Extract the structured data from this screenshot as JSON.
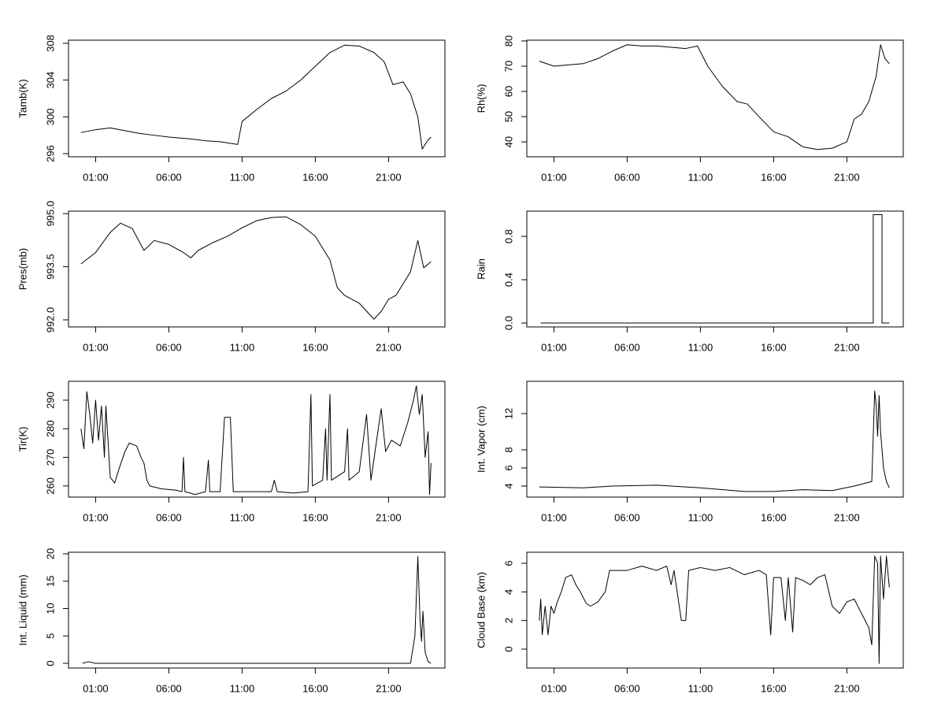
{
  "chart_data": [
    {
      "type": "line",
      "ylabel": "Tamb(K)",
      "color": "#000000",
      "x": [
        0.0,
        1,
        2,
        3,
        4,
        5,
        6,
        7.5,
        8.5,
        9.5,
        10.7,
        11,
        12,
        13,
        14,
        15,
        16,
        17,
        18,
        19,
        20,
        20.7,
        21.3,
        22,
        22.5,
        23,
        23.3,
        23.7,
        23.9
      ],
      "values": [
        298.3,
        298.6,
        298.8,
        298.5,
        298.2,
        298.0,
        297.8,
        297.6,
        297.4,
        297.3,
        297.0,
        299.5,
        300.8,
        302.0,
        302.8,
        304.0,
        305.5,
        307.0,
        307.8,
        307.7,
        307.0,
        306.0,
        303.5,
        303.8,
        302.5,
        300.0,
        296.5,
        297.5,
        297.8
      ],
      "xlim": [
        -0.85,
        24.85
      ],
      "ylim": [
        295.66,
        308.34
      ],
      "xticks": [
        {
          "value": 1,
          "label": "01:00"
        },
        {
          "value": 6,
          "label": "06:00"
        },
        {
          "value": 11,
          "label": "11:00"
        },
        {
          "value": 16,
          "label": "16:00"
        },
        {
          "value": 21,
          "label": "21:00"
        }
      ],
      "yticks": [
        296,
        300,
        304,
        308
      ]
    },
    {
      "type": "line",
      "ylabel": "Rh(%)",
      "color": "#000000",
      "x": [
        0.0,
        1,
        2,
        3,
        4,
        5,
        6,
        7,
        8,
        9,
        10,
        10.8,
        11.5,
        12.5,
        13.5,
        14.2,
        15,
        16,
        17,
        18,
        19,
        20,
        21,
        21.5,
        22,
        22.5,
        23,
        23.3,
        23.6,
        23.9
      ],
      "values": [
        72,
        70,
        70.5,
        71,
        73,
        76,
        78.5,
        78,
        78,
        77.5,
        77,
        78,
        70,
        62,
        56,
        55,
        50,
        44,
        42,
        38,
        37,
        37.5,
        40,
        49,
        51,
        56,
        66,
        78.5,
        73,
        71
      ],
      "xlim": [
        -0.85,
        24.85
      ],
      "ylim": [
        34.1,
        80.3
      ],
      "xticks": [
        {
          "value": 1,
          "label": "01:00"
        },
        {
          "value": 6,
          "label": "06:00"
        },
        {
          "value": 11,
          "label": "11:00"
        },
        {
          "value": 16,
          "label": "16:00"
        },
        {
          "value": 21,
          "label": "21:00"
        }
      ],
      "yticks": [
        40,
        50,
        60,
        70,
        80
      ]
    },
    {
      "type": "line",
      "ylabel": "Pres(mb)",
      "color": "#000000",
      "x": [
        0.0,
        1,
        2,
        2.7,
        3.5,
        4.3,
        5,
        6,
        7,
        7.5,
        8,
        9,
        10,
        11,
        12,
        13,
        14,
        15,
        16,
        17,
        17.5,
        18,
        19,
        20,
        20.5,
        21,
        21.5,
        22,
        22.5,
        23,
        23.4,
        23.9
      ],
      "values": [
        993.58,
        993.9,
        994.47,
        994.73,
        994.58,
        993.96,
        994.24,
        994.13,
        993.9,
        993.75,
        993.96,
        994.18,
        994.36,
        994.6,
        994.8,
        994.89,
        994.91,
        994.69,
        994.36,
        993.69,
        992.91,
        992.69,
        992.47,
        992.02,
        992.24,
        992.58,
        992.69,
        993.02,
        993.36,
        994.24,
        993.47,
        993.64
      ],
      "xlim": [
        -0.85,
        24.85
      ],
      "ylim": [
        991.8,
        995.07
      ],
      "xticks": [
        {
          "value": 1,
          "label": "01:00"
        },
        {
          "value": 6,
          "label": "06:00"
        },
        {
          "value": 11,
          "label": "11:00"
        },
        {
          "value": 16,
          "label": "16:00"
        },
        {
          "value": 21,
          "label": "21:00"
        }
      ],
      "yticks": [
        {
          "value": 992,
          "label": "992.0"
        },
        {
          "value": 993.5,
          "label": "993.5"
        },
        {
          "value": 995,
          "label": "995.0"
        }
      ]
    },
    {
      "type": "line",
      "ylabel": "Rain",
      "color": "#000000",
      "x": [
        0.1,
        22.8,
        22.8,
        23.4,
        23.4,
        23.9
      ],
      "values": [
        0,
        0,
        1,
        1,
        0,
        0
      ],
      "xlim": [
        -0.85,
        24.85
      ],
      "ylim": [
        -0.036,
        1.033
      ],
      "xticks": [
        {
          "value": 1,
          "label": "01:00"
        },
        {
          "value": 6,
          "label": "06:00"
        },
        {
          "value": 11,
          "label": "11:00"
        },
        {
          "value": 16,
          "label": "16:00"
        },
        {
          "value": 21,
          "label": "21:00"
        }
      ],
      "yticks": [
        {
          "value": 0,
          "label": "0.0"
        },
        {
          "value": 0.4,
          "label": "0.4"
        },
        {
          "value": 0.8,
          "label": "0.8"
        }
      ]
    },
    {
      "type": "line",
      "ylabel": "Tir(K)",
      "color": "#000000",
      "x": [
        0.0,
        0.2,
        0.4,
        0.6,
        0.8,
        1.0,
        1.2,
        1.4,
        1.6,
        1.7,
        2.0,
        2.3,
        2.6,
        3.0,
        3.3,
        3.8,
        4.1,
        4.3,
        4.5,
        4.7,
        5.5,
        6.5,
        6.9,
        7.0,
        7.1,
        7.8,
        8.5,
        8.7,
        8.8,
        9.5,
        9.8,
        10.2,
        10.4,
        12,
        13,
        13.2,
        13.4,
        14.5,
        15.5,
        15.7,
        15.8,
        16.5,
        16.7,
        16.8,
        17.0,
        17.1,
        18,
        18.2,
        18.3,
        19,
        19.5,
        19.8,
        20.3,
        20.5,
        20.8,
        21.2,
        21.8,
        22.3,
        22.7,
        22.9,
        23.1,
        23.3,
        23.5,
        23.7,
        23.8,
        23.9
      ],
      "values": [
        280,
        273,
        293,
        285,
        275,
        290,
        276,
        288,
        270,
        288,
        263,
        261,
        266,
        272,
        275,
        274,
        270,
        268,
        262,
        260,
        259,
        258.5,
        258,
        270,
        258,
        257,
        258,
        269,
        258,
        258,
        284,
        284,
        258,
        258,
        258,
        262,
        258,
        257.5,
        258,
        292,
        260,
        262,
        280,
        262,
        292,
        262,
        265,
        280,
        262,
        265,
        285,
        262,
        280,
        287,
        272,
        276,
        274,
        282,
        290,
        295,
        285,
        292,
        270,
        279,
        257,
        268
      ],
      "xlim": [
        -0.85,
        24.85
      ],
      "ylim": [
        256.1,
        296.6
      ],
      "xticks": [
        {
          "value": 1,
          "label": "01:00"
        },
        {
          "value": 6,
          "label": "06:00"
        },
        {
          "value": 11,
          "label": "11:00"
        },
        {
          "value": 16,
          "label": "16:00"
        },
        {
          "value": 21,
          "label": "21:00"
        }
      ],
      "yticks": [
        260,
        270,
        280,
        290
      ]
    },
    {
      "type": "line",
      "ylabel": "Int. Vapor (cm)",
      "color": "#000000",
      "x": [
        0.0,
        3,
        5,
        8,
        11,
        14,
        16,
        18,
        20,
        21.5,
        22.7,
        22.9,
        23.0,
        23.1,
        23.2,
        23.3,
        23.5,
        23.7,
        23.9
      ],
      "values": [
        3.9,
        3.8,
        4.0,
        4.1,
        3.8,
        3.4,
        3.4,
        3.6,
        3.5,
        4.0,
        4.5,
        14.5,
        13,
        9.5,
        14,
        10,
        6,
        4.5,
        3.8
      ],
      "xlim": [
        -0.85,
        24.85
      ],
      "ylim": [
        2.78,
        15.57
      ],
      "xticks": [
        {
          "value": 1,
          "label": "01:00"
        },
        {
          "value": 6,
          "label": "06:00"
        },
        {
          "value": 11,
          "label": "11:00"
        },
        {
          "value": 16,
          "label": "16:00"
        },
        {
          "value": 21,
          "label": "21:00"
        }
      ],
      "yticks": [
        4,
        6,
        8,
        12
      ]
    },
    {
      "type": "line",
      "ylabel": "Int. Liquid (mm)",
      "color": "#000000",
      "x": [
        0.1,
        0.5,
        1,
        22.5,
        22.8,
        23.0,
        23.15,
        23.25,
        23.35,
        23.5,
        23.7,
        23.9
      ],
      "values": [
        0,
        0.3,
        0,
        0,
        5,
        19.5,
        8,
        4,
        9.5,
        2,
        0.3,
        0
      ],
      "xlim": [
        -0.85,
        24.85
      ],
      "ylim": [
        -0.86,
        20.29
      ],
      "xticks": [
        {
          "value": 1,
          "label": "01:00"
        },
        {
          "value": 6,
          "label": "06:00"
        },
        {
          "value": 11,
          "label": "11:00"
        },
        {
          "value": 16,
          "label": "16:00"
        },
        {
          "value": 21,
          "label": "21:00"
        }
      ],
      "yticks": [
        0,
        5,
        10,
        15,
        20
      ]
    },
    {
      "type": "line",
      "ylabel": "Cloud Base (km)",
      "color": "#000000",
      "x": [
        0.0,
        0.1,
        0.2,
        0.4,
        0.6,
        0.8,
        1.0,
        1.2,
        1.5,
        1.8,
        2.2,
        2.5,
        2.8,
        3.2,
        3.5,
        4,
        4.5,
        4.8,
        6,
        7,
        8,
        8.7,
        9.0,
        9.2,
        9.7,
        10.0,
        10.2,
        11,
        12,
        13,
        14,
        15,
        15.5,
        15.8,
        16,
        16.5,
        16.8,
        17,
        17.3,
        17.5,
        18,
        18.5,
        19,
        19.5,
        20,
        20.5,
        21,
        21.5,
        22,
        22.5,
        22.7,
        22.9,
        23.1,
        23.2,
        23.3,
        23.5,
        23.7,
        23.9
      ],
      "values": [
        2,
        3.5,
        1,
        3,
        1,
        3,
        2.5,
        3.2,
        4,
        5,
        5.2,
        4.5,
        4,
        3.2,
        3,
        3.3,
        4,
        5.5,
        5.5,
        5.8,
        5.5,
        5.8,
        4.5,
        5.5,
        2,
        2,
        5.5,
        5.7,
        5.5,
        5.7,
        5.2,
        5.5,
        5.2,
        1,
        5,
        5,
        2,
        5,
        1.2,
        5,
        4.8,
        4.5,
        5,
        5.2,
        3,
        2.5,
        3.3,
        3.5,
        2.5,
        1.5,
        0.3,
        6.5,
        6,
        -1,
        6.5,
        3.5,
        6.5,
        4.3
      ],
      "xlim": [
        -0.85,
        24.85
      ],
      "ylim": [
        -1.32,
        6.77
      ],
      "xticks": [
        {
          "value": 1,
          "label": "01:00"
        },
        {
          "value": 6,
          "label": "06:00"
        },
        {
          "value": 11,
          "label": "11:00"
        },
        {
          "value": 16,
          "label": "16:00"
        },
        {
          "value": 21,
          "label": "21:00"
        }
      ],
      "yticks": [
        0,
        2,
        4,
        6
      ]
    }
  ]
}
